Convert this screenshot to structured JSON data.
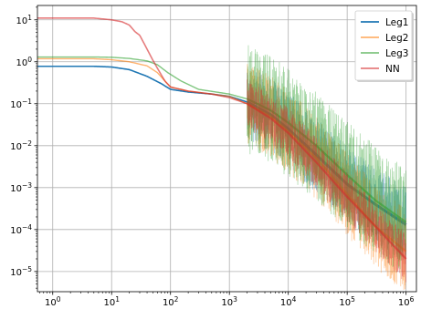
{
  "chart_data": {
    "type": "line",
    "title": "",
    "xlabel": "",
    "ylabel": "",
    "xscale": "log",
    "yscale": "log",
    "xlim": [
      0.55,
      1500000
    ],
    "ylim": [
      3.3e-06,
      22
    ],
    "grid": true,
    "legend_position": "top-right",
    "x_ticks": [
      {
        "value": 1,
        "base": "10",
        "exp": "0"
      },
      {
        "value": 10,
        "base": "10",
        "exp": "1"
      },
      {
        "value": 100,
        "base": "10",
        "exp": "2"
      },
      {
        "value": 1000,
        "base": "10",
        "exp": "3"
      },
      {
        "value": 10000,
        "base": "10",
        "exp": "4"
      },
      {
        "value": 100000,
        "base": "10",
        "exp": "5"
      },
      {
        "value": 1000000,
        "base": "10",
        "exp": "6"
      }
    ],
    "y_ticks": [
      {
        "value": 1e-05,
        "base": "10",
        "exp": "−5"
      },
      {
        "value": 0.0001,
        "base": "10",
        "exp": "−4"
      },
      {
        "value": 0.001,
        "base": "10",
        "exp": "−3"
      },
      {
        "value": 0.01,
        "base": "10",
        "exp": "−2"
      },
      {
        "value": 0.1,
        "base": "10",
        "exp": "−1"
      },
      {
        "value": 1,
        "base": "10",
        "exp": "0"
      },
      {
        "value": 10,
        "base": "10",
        "exp": "1"
      }
    ],
    "series": [
      {
        "name": "Leg1",
        "color": "#1f77b4",
        "noisy_band_from_x": 2000,
        "points": [
          [
            1,
            0.78
          ],
          [
            5,
            0.78
          ],
          [
            10,
            0.75
          ],
          [
            20,
            0.65
          ],
          [
            40,
            0.45
          ],
          [
            70,
            0.3
          ],
          [
            100,
            0.22
          ],
          [
            200,
            0.19
          ],
          [
            500,
            0.17
          ],
          [
            1000,
            0.15
          ],
          [
            2000,
            0.11
          ],
          [
            5000,
            0.055
          ],
          [
            10000,
            0.025
          ],
          [
            30000,
            0.006
          ],
          [
            100000,
            0.0012
          ],
          [
            300000,
            0.0004
          ],
          [
            1000000,
            0.00013
          ]
        ]
      },
      {
        "name": "Leg2",
        "color": "#ff7f0e",
        "noisy_band_from_x": 2000,
        "points": [
          [
            1,
            1.18
          ],
          [
            5,
            1.18
          ],
          [
            10,
            1.12
          ],
          [
            20,
            1.0
          ],
          [
            40,
            0.8
          ],
          [
            60,
            0.55
          ],
          [
            80,
            0.35
          ],
          [
            100,
            0.25
          ],
          [
            200,
            0.2
          ],
          [
            500,
            0.17
          ],
          [
            1000,
            0.15
          ],
          [
            2000,
            0.1
          ],
          [
            5000,
            0.05
          ],
          [
            10000,
            0.022
          ],
          [
            30000,
            0.005
          ],
          [
            100000,
            0.0007
          ],
          [
            300000,
            0.00012
          ],
          [
            1000000,
            3e-05
          ]
        ]
      },
      {
        "name": "Leg3",
        "color": "#2ca02c",
        "noisy_band_from_x": 2000,
        "points": [
          [
            1,
            1.3
          ],
          [
            5,
            1.3
          ],
          [
            10,
            1.28
          ],
          [
            20,
            1.2
          ],
          [
            40,
            1.05
          ],
          [
            60,
            0.85
          ],
          [
            90,
            0.55
          ],
          [
            150,
            0.35
          ],
          [
            300,
            0.22
          ],
          [
            1000,
            0.17
          ],
          [
            2000,
            0.13
          ],
          [
            5000,
            0.07
          ],
          [
            10000,
            0.035
          ],
          [
            30000,
            0.01
          ],
          [
            100000,
            0.002
          ],
          [
            300000,
            0.0005
          ],
          [
            1000000,
            0.00015
          ]
        ]
      },
      {
        "name": "NN",
        "color": "#d62728",
        "noisy_band_from_x": 2000,
        "points": [
          [
            1,
            11
          ],
          [
            5,
            11
          ],
          [
            10,
            10
          ],
          [
            15,
            9
          ],
          [
            20,
            7.5
          ],
          [
            25,
            5.2
          ],
          [
            30,
            4.3
          ],
          [
            40,
            2.0
          ],
          [
            50,
            1.1
          ],
          [
            60,
            0.7
          ],
          [
            80,
            0.35
          ],
          [
            100,
            0.25
          ],
          [
            200,
            0.2
          ],
          [
            500,
            0.17
          ],
          [
            1000,
            0.14
          ],
          [
            2000,
            0.1
          ],
          [
            5000,
            0.045
          ],
          [
            10000,
            0.02
          ],
          [
            30000,
            0.004
          ],
          [
            100000,
            0.0006
          ],
          [
            300000,
            0.00012
          ],
          [
            1000000,
            2e-05
          ]
        ]
      }
    ]
  }
}
